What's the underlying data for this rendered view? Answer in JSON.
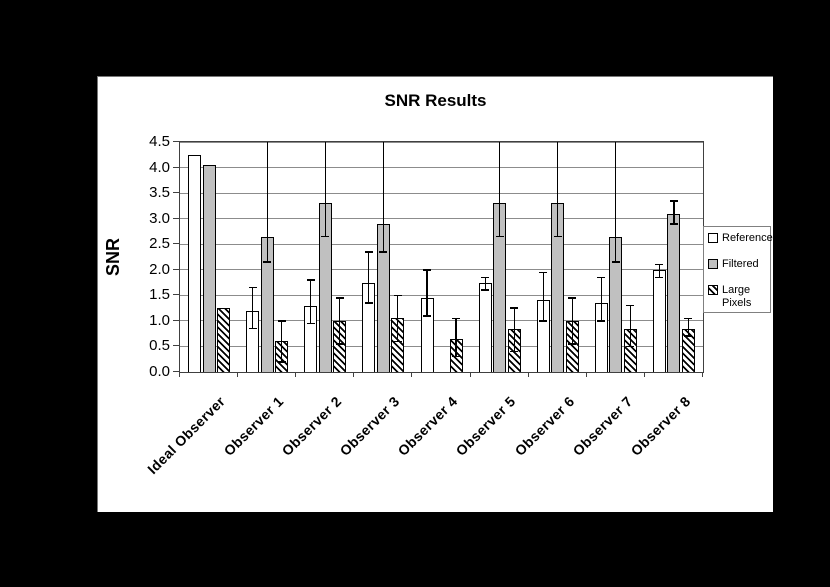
{
  "window": {
    "background": "#000000",
    "panel_background": "#ffffff"
  },
  "chart_data": {
    "type": "bar",
    "title": "SNR Results",
    "ylabel": "SNR",
    "xlabel": "",
    "ylim": [
      0,
      4.5
    ],
    "ytick_step": 0.5,
    "grid": true,
    "legend_position": "right",
    "categories": [
      "Ideal Observer",
      "Observer 1",
      "Observer 2",
      "Observer 3",
      "Observer 4",
      "Observer 5",
      "Observer 6",
      "Observer 7",
      "Observer 8"
    ],
    "series": [
      {
        "name": "Reference",
        "style": "white",
        "values": [
          4.25,
          1.2,
          1.3,
          1.75,
          1.45,
          1.75,
          1.4,
          1.35,
          2.0
        ],
        "err_lo": [
          null,
          0.85,
          0.95,
          1.35,
          1.1,
          1.6,
          1.0,
          1.0,
          1.85
        ],
        "err_hi": [
          null,
          1.65,
          1.8,
          2.35,
          2.0,
          1.85,
          1.95,
          1.85,
          2.1
        ]
      },
      {
        "name": "Filtered",
        "style": "gray",
        "values": [
          4.05,
          2.65,
          3.3,
          2.9,
          null,
          3.3,
          3.3,
          2.65,
          3.1
        ],
        "err_lo": [
          null,
          2.15,
          2.65,
          2.35,
          null,
          2.65,
          2.65,
          2.15,
          2.9
        ],
        "err_hi": [
          null,
          "clip",
          "clip",
          "clip",
          null,
          "clip",
          "clip",
          "clip",
          3.35
        ]
      },
      {
        "name": "Large Pixels",
        "style": "hatch",
        "values": [
          1.25,
          0.6,
          1.0,
          1.05,
          0.65,
          0.85,
          1.0,
          0.85,
          0.85
        ],
        "err_lo": [
          null,
          0.2,
          0.55,
          0.6,
          0.3,
          0.4,
          0.55,
          0.5,
          0.7
        ],
        "err_hi": [
          null,
          1.0,
          1.45,
          1.5,
          1.05,
          1.25,
          1.45,
          1.3,
          1.05
        ]
      }
    ],
    "legend": [
      "Reference",
      "Filtered",
      "Large Pixels"
    ]
  },
  "colors": {
    "background": "#000000",
    "panel": "#ffffff",
    "bar_reference": "#ffffff",
    "bar_filtered": "#c0c0c0",
    "bar_large_pixels_hatch": "#000000",
    "bar_border": "#000000",
    "gridline": "#8c8c8c",
    "axis": "#404040",
    "error_bar": "#000000",
    "legend_border": "#808080",
    "text": "#000000"
  }
}
